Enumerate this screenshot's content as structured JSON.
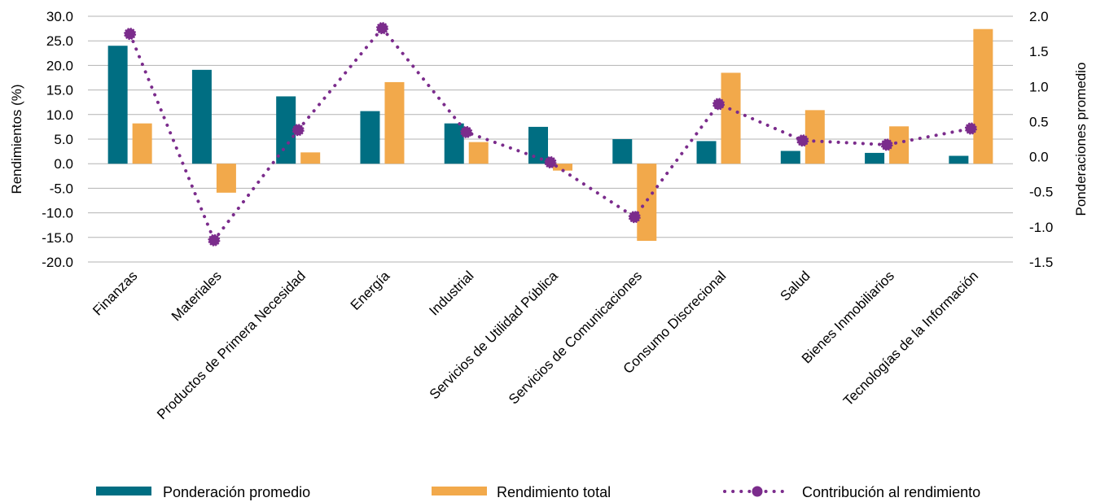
{
  "chart_data": {
    "type": "bar",
    "categories": [
      "Finanzas",
      "Materiales",
      "Productos de Primera Necesidad",
      "Energía",
      "Industrial",
      "Servicios de Utilidad Pública",
      "Servicios de Comunicaciones",
      "Consumo Discrecional",
      "Salud",
      "Bienes Inmobiliarios",
      "Tecnologías de la Información"
    ],
    "series": [
      {
        "name": "Ponderación promedio",
        "axis": "left",
        "kind": "bar",
        "color": "#006E82",
        "values": [
          24.0,
          19.1,
          13.7,
          10.7,
          8.2,
          7.5,
          5.0,
          4.6,
          2.6,
          2.2,
          1.6
        ]
      },
      {
        "name": "Rendimiento total",
        "axis": "left",
        "kind": "bar",
        "color": "#F2A94B",
        "values": [
          8.2,
          -5.9,
          2.3,
          16.6,
          4.4,
          -1.4,
          -15.7,
          18.5,
          10.9,
          7.6,
          27.4
        ]
      },
      {
        "name": "Contribución al rendimiento",
        "axis": "right",
        "kind": "line",
        "color": "#7B2C8C",
        "values": [
          1.75,
          -1.19,
          0.38,
          1.83,
          0.35,
          -0.08,
          -0.86,
          0.75,
          0.23,
          0.17,
          0.4
        ]
      }
    ],
    "y_left": {
      "label": "Rendimientos (%)",
      "min": -20,
      "max": 30,
      "step": 5
    },
    "y_right": {
      "label": "Ponderaciones promedio",
      "min": -1.5,
      "max": 2.0,
      "step": 0.5
    },
    "grid": true,
    "legend_position": "bottom"
  }
}
